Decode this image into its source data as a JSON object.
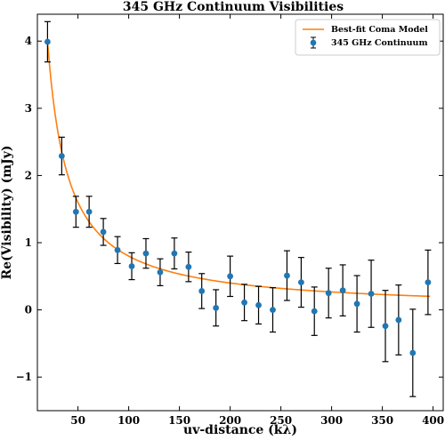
{
  "chart_data": {
    "type": "scatter",
    "title": "345 GHz Continuum Visibilities",
    "xlabel": "uv-distance (kλ)",
    "ylabel": "Re(Visibility) (mJy)",
    "xlim": [
      10,
      410
    ],
    "ylim": [
      -1.5,
      4.4
    ],
    "x_ticks": [
      50,
      100,
      150,
      200,
      250,
      300,
      350,
      400
    ],
    "y_ticks": [
      -1,
      0,
      1,
      2,
      3,
      4
    ],
    "y_tick_labels": [
      "−1",
      "0",
      "1",
      "2",
      "3",
      "4"
    ],
    "grid": false,
    "legend_position": "top-right",
    "colors": {
      "points": "#1f77b4",
      "model": "#ff7f0e",
      "errorbars": "#000000"
    },
    "series": [
      {
        "name": "345 GHz Continuum",
        "kind": "errorbar",
        "x": [
          20,
          34,
          48,
          61,
          75,
          89,
          103,
          117,
          131,
          145,
          159,
          172,
          186,
          200,
          214,
          228,
          242,
          256,
          270,
          283,
          297,
          311,
          325,
          339,
          353,
          366,
          380,
          395
        ],
        "y": [
          3.99,
          2.29,
          1.46,
          1.46,
          1.16,
          0.89,
          0.65,
          0.84,
          0.56,
          0.84,
          0.64,
          0.28,
          0.03,
          0.5,
          0.11,
          0.07,
          0.0,
          0.51,
          0.41,
          -0.02,
          0.25,
          0.29,
          0.09,
          0.24,
          -0.24,
          -0.15,
          -0.64,
          0.41
        ],
        "yerr": [
          0.3,
          0.28,
          0.23,
          0.23,
          0.2,
          0.2,
          0.2,
          0.22,
          0.2,
          0.23,
          0.22,
          0.26,
          0.27,
          0.3,
          0.27,
          0.28,
          0.33,
          0.37,
          0.37,
          0.36,
          0.37,
          0.38,
          0.42,
          0.5,
          0.53,
          0.52,
          0.65,
          0.48
        ]
      },
      {
        "name": "Best-fit Coma Model",
        "kind": "line",
        "model": {
          "form": "a / x",
          "a": 80,
          "x_start": 20,
          "x_end": 397
        }
      }
    ]
  }
}
